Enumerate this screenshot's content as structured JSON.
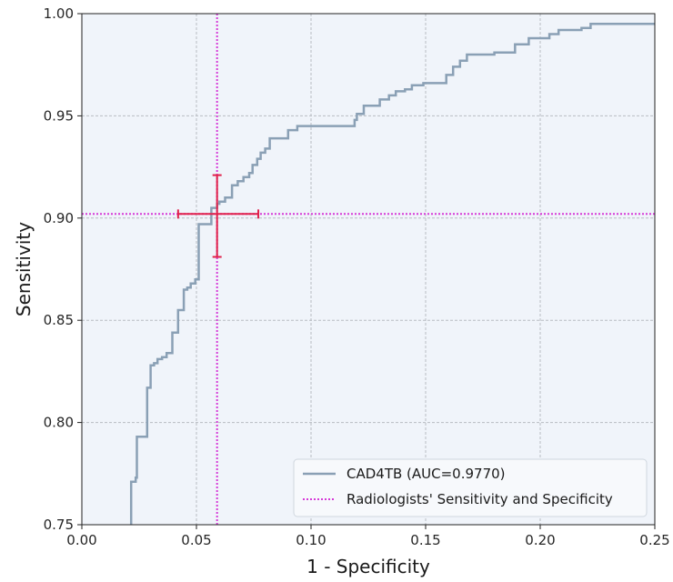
{
  "chart_data": {
    "type": "line",
    "title": "",
    "xlabel": "1 - Specificity",
    "ylabel": "Sensitivity",
    "xlim": [
      0.0,
      0.25
    ],
    "ylim": [
      0.75,
      1.0
    ],
    "xticks": [
      "0.00",
      "0.05",
      "0.10",
      "0.15",
      "0.20",
      "0.25"
    ],
    "yticks": [
      "0.75",
      "0.80",
      "0.85",
      "0.90",
      "0.95",
      "1.00"
    ],
    "grid": true,
    "legend_position": "lower-right",
    "series": [
      {
        "name": "CAD4TB (AUC=0.9770)",
        "color": "#8aa0b5",
        "style": "solid-step",
        "points": [
          [
            0.0215,
            0.75
          ],
          [
            0.0215,
            0.771
          ],
          [
            0.0235,
            0.771
          ],
          [
            0.0235,
            0.773
          ],
          [
            0.024,
            0.773
          ],
          [
            0.024,
            0.793
          ],
          [
            0.0285,
            0.793
          ],
          [
            0.0285,
            0.817
          ],
          [
            0.03,
            0.817
          ],
          [
            0.03,
            0.828
          ],
          [
            0.0315,
            0.828
          ],
          [
            0.0315,
            0.829
          ],
          [
            0.033,
            0.829
          ],
          [
            0.033,
            0.831
          ],
          [
            0.035,
            0.831
          ],
          [
            0.035,
            0.832
          ],
          [
            0.037,
            0.832
          ],
          [
            0.037,
            0.834
          ],
          [
            0.0395,
            0.834
          ],
          [
            0.0395,
            0.844
          ],
          [
            0.042,
            0.844
          ],
          [
            0.042,
            0.855
          ],
          [
            0.0445,
            0.855
          ],
          [
            0.0445,
            0.865
          ],
          [
            0.046,
            0.865
          ],
          [
            0.046,
            0.866
          ],
          [
            0.0475,
            0.866
          ],
          [
            0.0475,
            0.868
          ],
          [
            0.0495,
            0.868
          ],
          [
            0.0495,
            0.87
          ],
          [
            0.051,
            0.87
          ],
          [
            0.051,
            0.897
          ],
          [
            0.0565,
            0.897
          ],
          [
            0.0565,
            0.905
          ],
          [
            0.059,
            0.905
          ],
          [
            0.059,
            0.907
          ],
          [
            0.06,
            0.907
          ],
          [
            0.06,
            0.908
          ],
          [
            0.0625,
            0.908
          ],
          [
            0.0625,
            0.91
          ],
          [
            0.0655,
            0.91
          ],
          [
            0.0655,
            0.916
          ],
          [
            0.068,
            0.916
          ],
          [
            0.068,
            0.918
          ],
          [
            0.0705,
            0.918
          ],
          [
            0.0705,
            0.92
          ],
          [
            0.073,
            0.92
          ],
          [
            0.073,
            0.922
          ],
          [
            0.0745,
            0.922
          ],
          [
            0.0745,
            0.926
          ],
          [
            0.0765,
            0.926
          ],
          [
            0.0765,
            0.929
          ],
          [
            0.078,
            0.929
          ],
          [
            0.078,
            0.932
          ],
          [
            0.08,
            0.932
          ],
          [
            0.08,
            0.934
          ],
          [
            0.082,
            0.934
          ],
          [
            0.082,
            0.939
          ],
          [
            0.09,
            0.939
          ],
          [
            0.09,
            0.943
          ],
          [
            0.094,
            0.943
          ],
          [
            0.094,
            0.945
          ],
          [
            0.119,
            0.945
          ],
          [
            0.119,
            0.948
          ],
          [
            0.12,
            0.948
          ],
          [
            0.12,
            0.951
          ],
          [
            0.123,
            0.951
          ],
          [
            0.123,
            0.955
          ],
          [
            0.13,
            0.955
          ],
          [
            0.13,
            0.958
          ],
          [
            0.134,
            0.958
          ],
          [
            0.134,
            0.96
          ],
          [
            0.137,
            0.96
          ],
          [
            0.137,
            0.962
          ],
          [
            0.141,
            0.962
          ],
          [
            0.141,
            0.963
          ],
          [
            0.144,
            0.963
          ],
          [
            0.144,
            0.965
          ],
          [
            0.149,
            0.965
          ],
          [
            0.149,
            0.966
          ],
          [
            0.159,
            0.966
          ],
          [
            0.159,
            0.97
          ],
          [
            0.162,
            0.97
          ],
          [
            0.162,
            0.974
          ],
          [
            0.165,
            0.974
          ],
          [
            0.165,
            0.977
          ],
          [
            0.168,
            0.977
          ],
          [
            0.168,
            0.98
          ],
          [
            0.18,
            0.98
          ],
          [
            0.18,
            0.981
          ],
          [
            0.189,
            0.981
          ],
          [
            0.189,
            0.985
          ],
          [
            0.195,
            0.985
          ],
          [
            0.195,
            0.988
          ],
          [
            0.204,
            0.988
          ],
          [
            0.204,
            0.99
          ],
          [
            0.208,
            0.99
          ],
          [
            0.208,
            0.992
          ],
          [
            0.218,
            0.992
          ],
          [
            0.218,
            0.993
          ],
          [
            0.222,
            0.993
          ],
          [
            0.222,
            0.995
          ],
          [
            0.25,
            0.995
          ]
        ]
      },
      {
        "name": "Radiologists' Sensitivity and Specificity",
        "color": "#d63ad8",
        "style": "dotted-crosshair",
        "x": 0.059,
        "y": 0.902
      }
    ],
    "radiologist_point": {
      "x": 0.059,
      "y": 0.902,
      "x_err": [
        0.042,
        0.077
      ],
      "y_err": [
        0.881,
        0.921
      ],
      "color": "#e0204a"
    }
  }
}
